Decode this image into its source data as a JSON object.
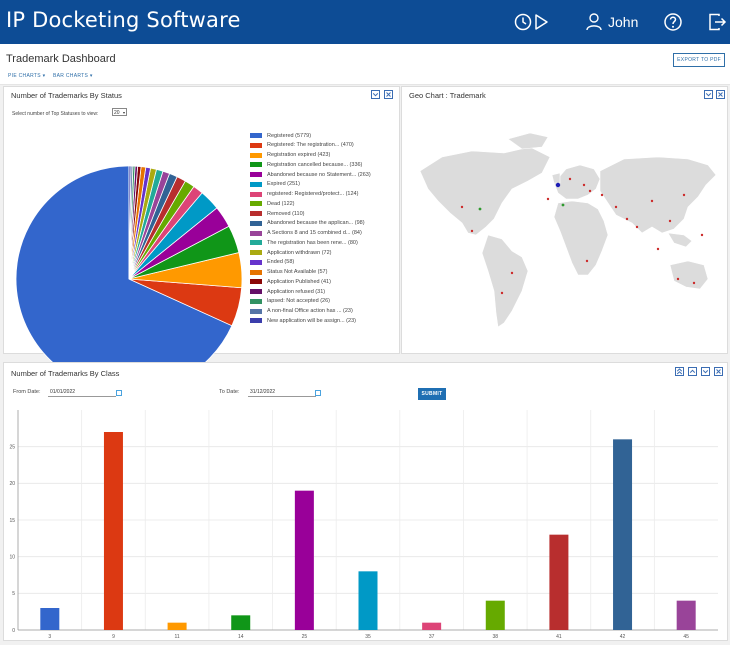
{
  "app": {
    "title": "IP Docketing Software",
    "user": "John"
  },
  "dashboard": {
    "title": "Trademark Dashboard",
    "export_label": "EXPORT TO PDF",
    "menu": [
      "PIE CHARTS",
      "BAR CHARTS"
    ]
  },
  "status_panel": {
    "title": "Number of Trademarks By Status",
    "select_label": "Select number of Top Statuses to view:",
    "select_value": "20",
    "legend": [
      {
        "label": "Registered (5779)",
        "color": "#3366cc"
      },
      {
        "label": "Registered:  The registration... (470)",
        "color": "#dc3912"
      },
      {
        "label": "Registration expired (423)",
        "color": "#ff9900"
      },
      {
        "label": "Registration cancelled because... (336)",
        "color": "#109618"
      },
      {
        "label": "Abandoned because no Statement... (263)",
        "color": "#990099"
      },
      {
        "label": "Expired (251)",
        "color": "#0099c6"
      },
      {
        "label": "registered:  Registered/protect... (124)",
        "color": "#dd4477"
      },
      {
        "label": "Dead (122)",
        "color": "#66aa00"
      },
      {
        "label": "Removed (110)",
        "color": "#b82e2e"
      },
      {
        "label": "Abandoned because the applican... (98)",
        "color": "#316395"
      },
      {
        "label": "A Sections 8 and 15 combined d... (84)",
        "color": "#994499"
      },
      {
        "label": "The registration has been rene... (80)",
        "color": "#22aa99"
      },
      {
        "label": "Application withdrawn (72)",
        "color": "#aaaa11"
      },
      {
        "label": "Ended (58)",
        "color": "#6633cc"
      },
      {
        "label": "Status Not Available (57)",
        "color": "#e67300"
      },
      {
        "label": "Application Published (41)",
        "color": "#8b0707"
      },
      {
        "label": "Application refused (31)",
        "color": "#651067"
      },
      {
        "label": "lapsed:  Not accepted (26)",
        "color": "#329262"
      },
      {
        "label": "A non-final Office action has ... (23)",
        "color": "#5574a6"
      },
      {
        "label": "New application will be assign... (23)",
        "color": "#3b3eac"
      }
    ]
  },
  "geo_panel": {
    "title": "Geo Chart : Trademark"
  },
  "class_panel": {
    "title": "Number of Trademarks By Class",
    "from_label": "From Date:",
    "from_value": "01/01/2022",
    "to_label": "To Date:",
    "to_value": "31/12/2022",
    "submit_label": "SUBMIT"
  },
  "chart_data": [
    {
      "type": "pie",
      "title": "Number of Trademarks By Status",
      "categories": [
        "Registered",
        "Registered:  The registration...",
        "Registration expired",
        "Registration cancelled because...",
        "Abandoned because no Statement...",
        "Expired",
        "registered:  Registered/protect...",
        "Dead",
        "Removed",
        "Abandoned because the applican...",
        "A Sections 8 and 15 combined d...",
        "The registration has been rene...",
        "Application withdrawn",
        "Ended",
        "Status Not Available",
        "Application Published",
        "Application refused",
        "lapsed:  Not accepted",
        "A non-final Office action has ...",
        "New application will be assign..."
      ],
      "values": [
        5779,
        470,
        423,
        336,
        263,
        251,
        124,
        122,
        110,
        98,
        84,
        80,
        72,
        58,
        57,
        41,
        31,
        26,
        23,
        23
      ],
      "legend": "right"
    },
    {
      "type": "bar",
      "title": "Number of Trademarks By Class",
      "categories": [
        "3",
        "9",
        "11",
        "14",
        "25",
        "35",
        "37",
        "38",
        "41",
        "42",
        "45"
      ],
      "values": [
        3,
        27,
        1,
        2,
        19,
        8,
        1,
        4,
        13,
        26,
        4
      ],
      "colors": [
        "#3366cc",
        "#dc3912",
        "#ff9900",
        "#109618",
        "#990099",
        "#0099c6",
        "#dd4477",
        "#66aa00",
        "#b82e2e",
        "#316395",
        "#994499"
      ],
      "yticks": [
        0,
        5,
        10,
        15,
        20,
        25
      ],
      "ylim": [
        0,
        30
      ],
      "grid": true
    }
  ]
}
